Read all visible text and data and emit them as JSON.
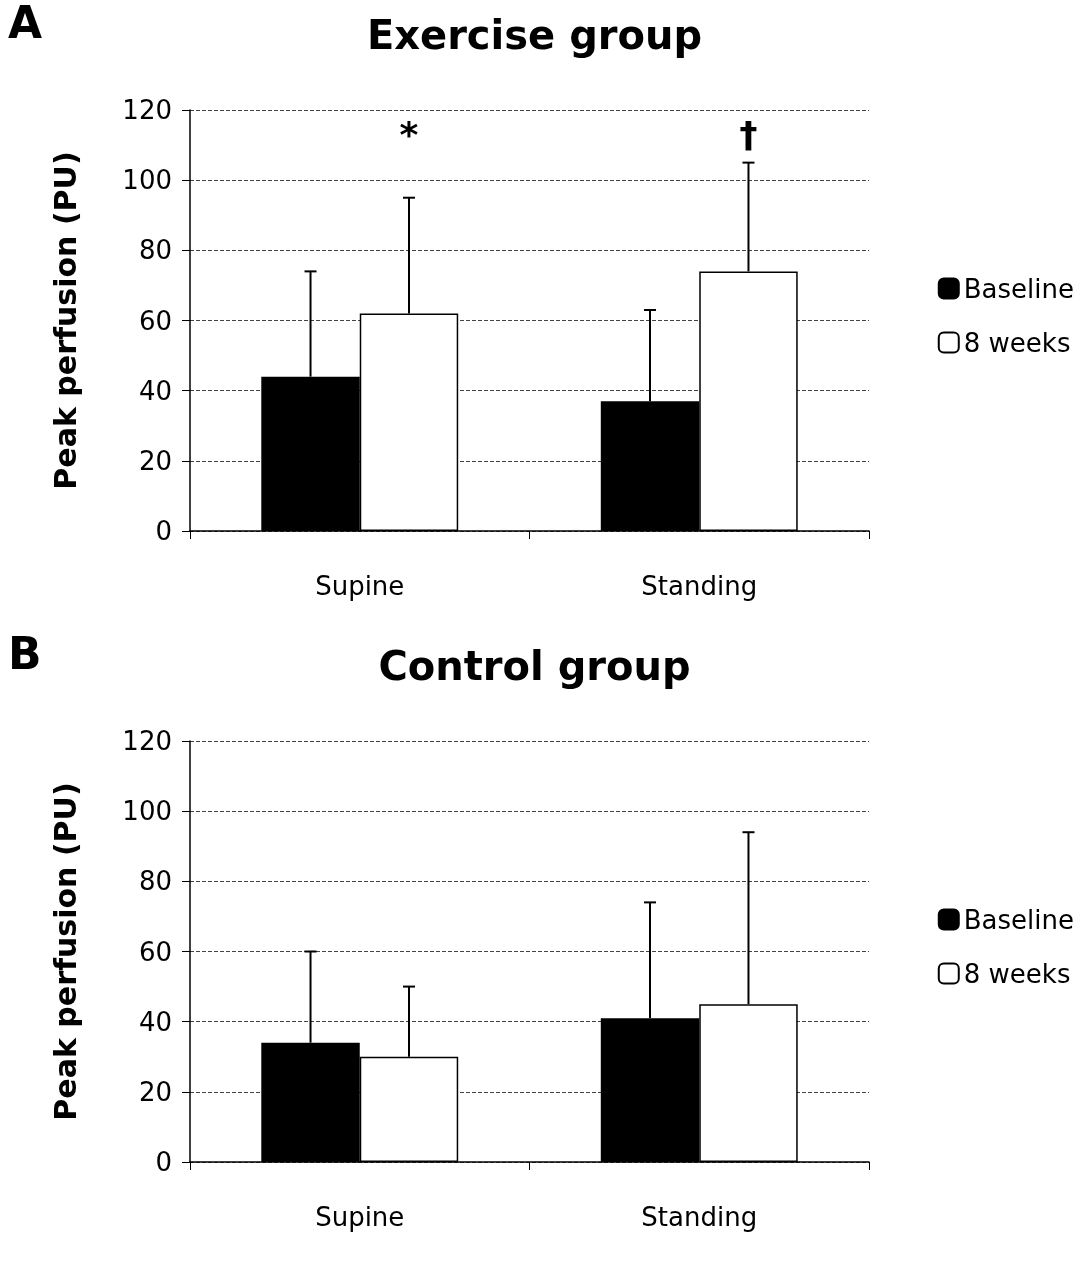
{
  "chart_data": [
    {
      "type": "bar",
      "title": "Exercise group",
      "ylabel": "Peak perfusion (PU)",
      "categories": [
        "Supine",
        "Standing"
      ],
      "series": [
        {
          "name": "Baseline",
          "color": "#000000",
          "values": [
            44,
            37
          ],
          "errors": [
            [
              44,
              74
            ],
            [
              37,
              63
            ]
          ]
        },
        {
          "name": "8 weeks",
          "color": "#ffffff",
          "values": [
            62,
            74
          ],
          "errors": [
            [
              62,
              95
            ],
            [
              74,
              105
            ]
          ]
        }
      ],
      "ylim": [
        0,
        120
      ],
      "yticks": [
        0,
        20,
        40,
        60,
        80,
        100,
        120
      ],
      "grid": "y",
      "legend": "right",
      "annotations": [
        "A",
        "*",
        "†"
      ]
    },
    {
      "type": "bar",
      "title": "Control group",
      "ylabel": "Peak perfusion (PU)",
      "categories": [
        "Supine",
        "Standing"
      ],
      "series": [
        {
          "name": "Baseline",
          "color": "#000000",
          "values": [
            34,
            41
          ],
          "errors": [
            [
              34,
              60
            ],
            [
              41,
              74
            ]
          ]
        },
        {
          "name": "8 weeks",
          "color": "#ffffff",
          "values": [
            30,
            45
          ],
          "errors": [
            [
              30,
              50
            ],
            [
              45,
              94
            ]
          ]
        }
      ],
      "ylim": [
        0,
        120
      ],
      "yticks": [
        0,
        20,
        40,
        60,
        80,
        100,
        120
      ],
      "grid": "y",
      "legend": "right",
      "annotations": [
        "B"
      ]
    }
  ]
}
